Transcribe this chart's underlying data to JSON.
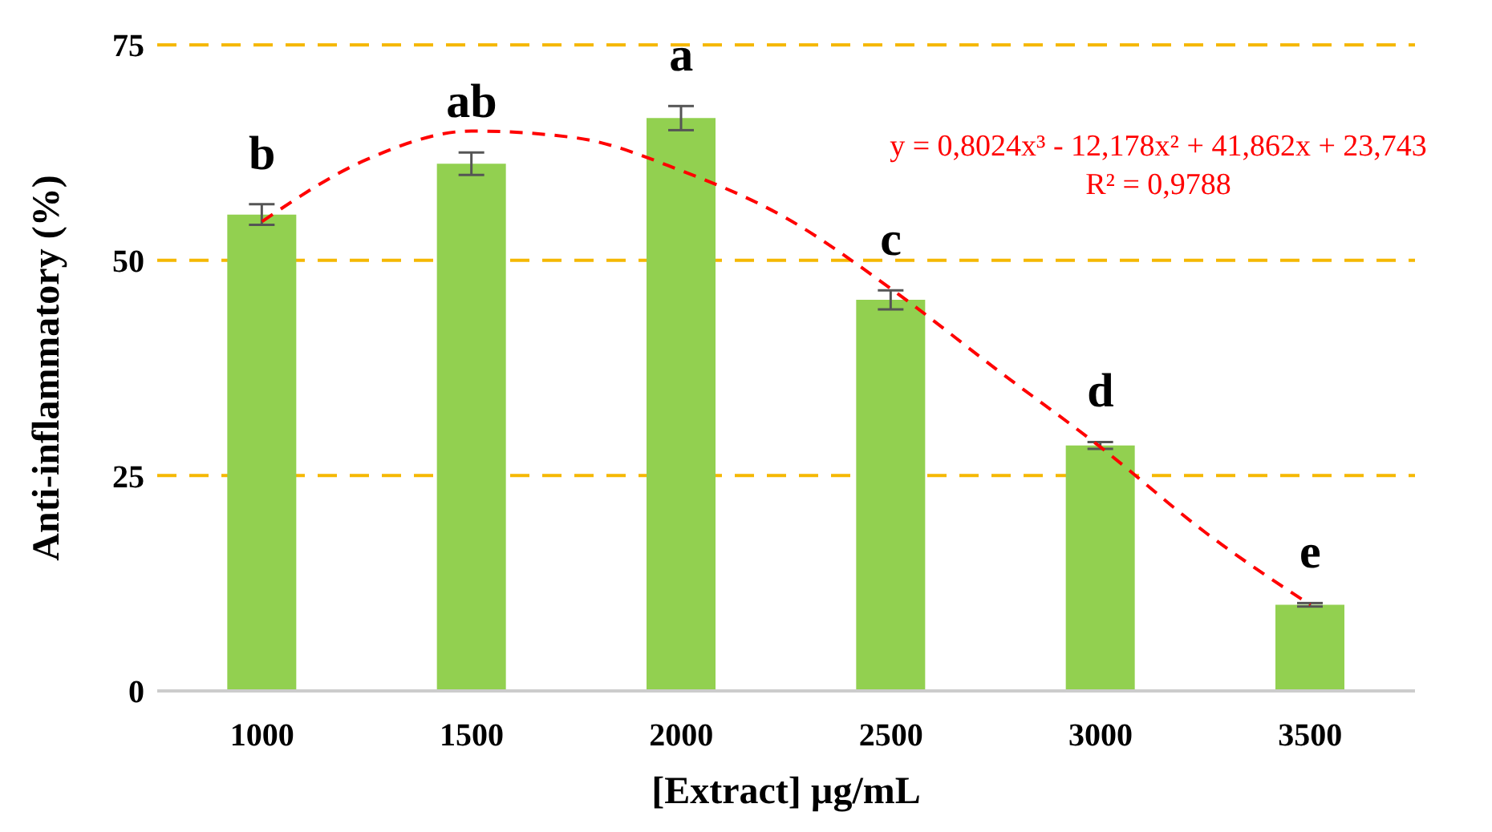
{
  "chart_data": {
    "type": "bar",
    "xlabel": "[Extract] µg/mL",
    "ylabel": "Anti-inflammatory (%)",
    "x": [
      1000,
      1500,
      2000,
      2500,
      3000,
      3500
    ],
    "xlim": [
      750,
      3750
    ],
    "xticks": [
      1000,
      1500,
      2000,
      2500,
      3000,
      3500
    ],
    "ylim": [
      0,
      75
    ],
    "yticks": [
      0,
      25,
      50,
      75
    ],
    "grid": "y",
    "legend": false,
    "series": [
      {
        "color": "#92d050",
        "values": [
          55.3,
          61.2,
          66.5,
          45.4,
          28.5,
          10.0
        ],
        "errors": [
          1.2,
          1.3,
          1.4,
          1.1,
          0.4,
          0.2
        ]
      },
      {
        "type": "line",
        "color": "#ff0000",
        "line_style": "dashed",
        "marker": "none",
        "x": [
          1000,
          1250,
          1500,
          1750,
          2000,
          2250,
          2500,
          2750,
          3000,
          3250,
          3500
        ],
        "values": [
          54.5,
          61.7,
          65.0,
          64.2,
          60.4,
          54.9,
          46.7,
          37.4,
          28.3,
          18.4,
          10.0
        ]
      }
    ],
    "annotations": [
      {
        "text": "b",
        "x": 1000,
        "y": 55.3
      },
      {
        "text": "ab",
        "x": 1500,
        "y": 61.2
      },
      {
        "text": "a",
        "x": 2000,
        "y": 66.5
      },
      {
        "text": "c",
        "x": 2500,
        "y": 45.4
      },
      {
        "text": "d",
        "x": 3000,
        "y": 28.5
      },
      {
        "text": "e",
        "x": 3500,
        "y": 10.0
      },
      "y = 0,8024x³ - 12,178x² + 41,862x + 23,743",
      "R² = 0,9788"
    ]
  }
}
